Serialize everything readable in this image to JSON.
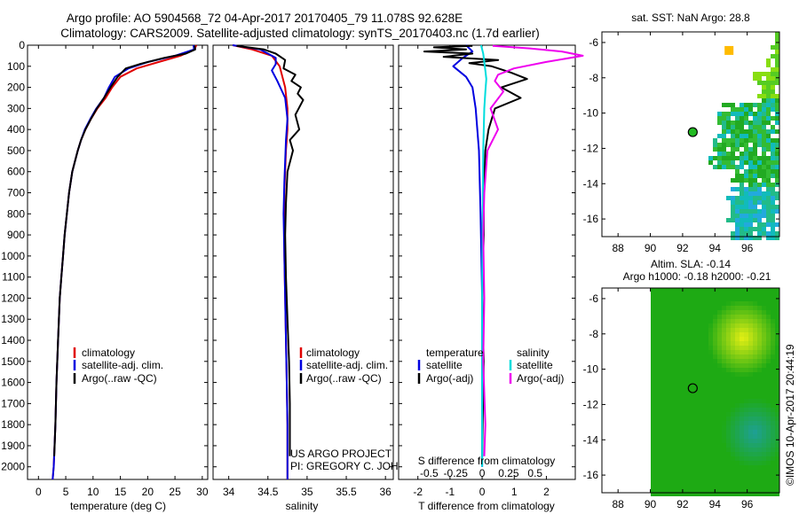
{
  "header": {
    "title_line1": "Argo profile: AO 5904568_72 04-Apr-2017 20170405_79 11.078S 92.628E",
    "title_line2": "Climatology: CARS2009. Satellite-adjusted climatology: synTS_20170403.nc (1.7d earlier)"
  },
  "credits": {
    "project": "US ARGO PROJECT",
    "pi": "PI: GREGORY C. JOHNSON",
    "imos": "©IMOS 10-Apr-2017 20:44:19"
  },
  "colors": {
    "climatology": "#e00000",
    "satellite": "#0000e0",
    "argo": "#000000",
    "sal_satellite": "#00dddd",
    "sal_argo": "#ee00ee",
    "map_bg": "#ffffff",
    "alt_green": "#22bb22"
  },
  "chart_data": [
    {
      "id": "temperature",
      "type": "line",
      "xlabel": "temperature (deg C)",
      "ylabel": "",
      "xlim": [
        -2,
        31
      ],
      "ylim": [
        2060,
        0
      ],
      "xticks": [
        0,
        5,
        10,
        15,
        20,
        25,
        30
      ],
      "yticks": [
        0,
        100,
        200,
        300,
        400,
        500,
        600,
        700,
        800,
        900,
        1000,
        1100,
        1200,
        1300,
        1400,
        1500,
        1600,
        1700,
        1800,
        1900,
        2000
      ],
      "legend": [
        "climatology",
        "satellite-adj. clim.",
        "Argo(..raw -QC)"
      ],
      "series": [
        {
          "name": "climatology",
          "color": "#e00000",
          "x": [
            28.9,
            28.6,
            26,
            22,
            18,
            15,
            13.5,
            12.3,
            10.8,
            9.6,
            8.6,
            7.8,
            7.2,
            6.7,
            6.2,
            5.6,
            5.2,
            4.8,
            4.5,
            4.2,
            3.9,
            3.6,
            3.3,
            3.1,
            2.8,
            2.6
          ],
          "y": [
            0,
            20,
            50,
            80,
            110,
            150,
            200,
            250,
            300,
            350,
            400,
            450,
            500,
            550,
            600,
            700,
            800,
            900,
            1000,
            1100,
            1200,
            1400,
            1600,
            1800,
            2000,
            2060
          ]
        },
        {
          "name": "satellite-adj. clim.",
          "color": "#0000e0",
          "x": [
            28.4,
            28.5,
            25,
            20,
            16.5,
            14,
            12.9,
            12,
            10.6,
            9.5,
            8.5,
            7.8,
            7.2,
            6.7,
            6.2,
            5.6,
            5.2,
            4.8,
            4.5,
            4.2,
            3.9,
            3.6,
            3.3,
            3.1,
            2.8,
            2.6
          ],
          "y": [
            0,
            20,
            50,
            80,
            110,
            150,
            200,
            250,
            300,
            350,
            400,
            450,
            500,
            550,
            600,
            700,
            800,
            900,
            1000,
            1100,
            1200,
            1400,
            1600,
            1800,
            2000,
            2060
          ]
        },
        {
          "name": "Argo(..raw -QC)",
          "color": "#000000",
          "x": [
            28.6,
            28.7,
            27,
            23,
            18.5,
            16,
            14.5,
            13.2,
            12,
            10.7,
            9.6,
            8.6,
            7.8,
            7.2,
            6.7,
            6.2,
            5.6,
            5.2,
            4.8,
            4.5,
            4.2,
            3.9,
            3.6,
            3.3,
            3.1,
            2.9
          ],
          "y": [
            3,
            20,
            40,
            60,
            90,
            110,
            150,
            200,
            250,
            300,
            350,
            400,
            450,
            500,
            550,
            600,
            700,
            800,
            900,
            1000,
            1100,
            1200,
            1400,
            1600,
            1800,
            1950
          ]
        }
      ]
    },
    {
      "id": "salinity",
      "type": "line",
      "xlabel": "salinity",
      "xlim": [
        33.8,
        36.1
      ],
      "ylim": [
        2060,
        0
      ],
      "xticks": [
        34,
        34.5,
        35,
        35.5,
        36
      ],
      "xticklabels": [
        "34",
        "34.5",
        "35",
        "35.5",
        "36"
      ],
      "legend": [
        "climatology",
        "satellite-adj. clim.",
        "Argo(..raw -QC)"
      ],
      "series": [
        {
          "name": "climatology",
          "color": "#e00000",
          "x": [
            34.05,
            34.3,
            34.55,
            34.65,
            34.72,
            34.75,
            34.75,
            34.73,
            34.72,
            34.71,
            34.71,
            34.71,
            34.72,
            34.73,
            34.74,
            34.75,
            34.75
          ],
          "y": [
            0,
            20,
            50,
            100,
            200,
            300,
            400,
            500,
            600,
            700,
            800,
            1000,
            1200,
            1400,
            1600,
            1800,
            2060
          ]
        },
        {
          "name": "satellite-adj. clim.",
          "color": "#0000e0",
          "x": [
            34.05,
            34.4,
            34.6,
            34.6,
            34.55,
            34.62,
            34.72,
            34.75,
            34.73,
            34.72,
            34.71,
            34.7,
            34.71,
            34.72,
            34.73,
            34.74,
            34.75,
            34.75
          ],
          "y": [
            0,
            20,
            60,
            90,
            120,
            170,
            250,
            350,
            450,
            550,
            650,
            800,
            1000,
            1200,
            1400,
            1600,
            1800,
            2060
          ]
        },
        {
          "name": "Argo(..raw -QC)",
          "color": "#000000",
          "x": [
            34.1,
            34.45,
            34.6,
            34.72,
            34.7,
            34.85,
            34.8,
            34.92,
            34.88,
            34.95,
            34.85,
            34.9,
            34.78,
            34.82,
            34.75,
            34.73,
            34.72,
            34.73,
            34.75,
            34.77,
            34.78,
            34.78
          ],
          "y": [
            3,
            20,
            40,
            70,
            110,
            140,
            170,
            200,
            230,
            260,
            330,
            400,
            450,
            500,
            600,
            750,
            900,
            1100,
            1300,
            1500,
            1700,
            1950
          ]
        }
      ]
    },
    {
      "id": "difference",
      "type": "line",
      "xlabel": "T difference from climatology",
      "top_label": "S difference from climatology",
      "xlim": [
        -2.6,
        2.9
      ],
      "ylim": [
        2060,
        0
      ],
      "xticks": [
        -2,
        -1,
        0,
        1,
        2
      ],
      "top_ticks": [
        -0.5,
        -0.25,
        0,
        0.25,
        0.5
      ],
      "top_ticklabels": [
        "-0.5",
        "-0.25",
        "0",
        "0.25",
        "0.5"
      ],
      "legend_temperature_title": "temperature",
      "legend_salinity_title": "salinity",
      "legend": [
        "satellite",
        "Argo(-adj)",
        "satellite",
        "Argo(-adj)"
      ],
      "series": [
        {
          "name": "T satellite",
          "color": "#0000e0",
          "x": [
            -0.5,
            -0.3,
            -0.6,
            -0.9,
            -0.5,
            -0.3,
            -0.2,
            -0.1,
            -0.05,
            0,
            0
          ],
          "y": [
            0,
            30,
            60,
            100,
            150,
            200,
            300,
            500,
            800,
            1200,
            2000
          ]
        },
        {
          "name": "T Argo(-adj)",
          "color": "#000000",
          "x": [
            -0.3,
            -1.5,
            -0.5,
            -1.8,
            -0.3,
            -1.2,
            0.5,
            -0.4,
            0.3,
            0.9,
            1.4,
            0.6,
            1.2,
            0.4,
            0.2,
            0.1,
            0.05,
            0.05,
            0,
            0.05,
            0
          ],
          "y": [
            3,
            10,
            20,
            30,
            40,
            55,
            70,
            85,
            100,
            130,
            160,
            200,
            250,
            300,
            400,
            500,
            700,
            900,
            1200,
            1500,
            1950
          ]
        },
        {
          "name": "S satellite",
          "color": "#00dddd",
          "x": [
            -0.01,
            0.01,
            0.02,
            0.03,
            0.04,
            0.03,
            0.02,
            0.01,
            0.005,
            0,
            0
          ],
          "y": [
            0,
            40,
            80,
            120,
            160,
            220,
            300,
            500,
            800,
            1200,
            2000
          ]
        },
        {
          "name": "S Argo(-adj)",
          "color": "#ee00ee",
          "x": [
            0.1,
            0.45,
            0.75,
            0.95,
            0.6,
            0.3,
            0.15,
            0.12,
            0.2,
            0.08,
            0.15,
            0.05,
            0.02,
            0.01,
            0.02,
            0.01,
            0.03,
            0.02
          ],
          "y": [
            3,
            15,
            30,
            50,
            80,
            110,
            140,
            170,
            220,
            300,
            400,
            500,
            700,
            900,
            1200,
            1500,
            1800,
            1950
          ]
        }
      ]
    },
    {
      "id": "sst-map",
      "type": "heatmap",
      "title": "sat. SST: NaN Argo: 28.8",
      "xlim": [
        87,
        98
      ],
      "ylim": [
        -17,
        -5.4
      ],
      "xticks": [
        88,
        90,
        92,
        94,
        96
      ],
      "yticks": [
        -6,
        -8,
        -10,
        -12,
        -14,
        -16
      ],
      "argo_position": {
        "lon": 92.628,
        "lat": -11.078
      }
    },
    {
      "id": "sla-map",
      "type": "heatmap",
      "title": "Altim. SLA: -0.14",
      "subtitle": "Argo h1000: -0.18 h2000: -0.21",
      "xlim": [
        87,
        98
      ],
      "ylim": [
        -17,
        -5.4
      ],
      "xticks": [
        88,
        90,
        92,
        94,
        96
      ],
      "yticks": [
        -6,
        -8,
        -10,
        -12,
        -14,
        -16
      ],
      "argo_position": {
        "lon": 92.628,
        "lat": -11.078
      }
    }
  ]
}
